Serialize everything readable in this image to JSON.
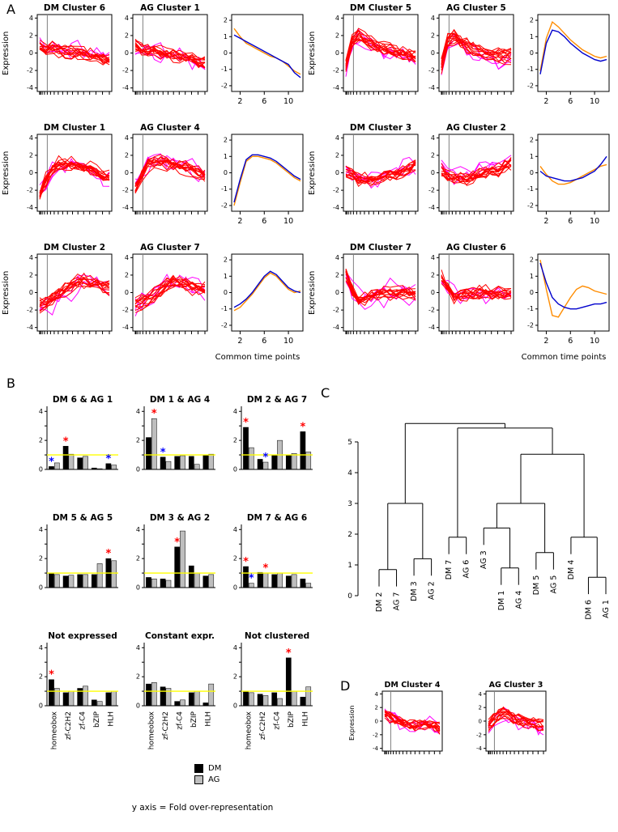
{
  "figure": {
    "panel_labels": {
      "a": "A",
      "b": "B",
      "c": "C",
      "d": "D"
    }
  },
  "axes": {
    "expression_label": "Expression",
    "common_time_points_label": "Common time points",
    "cluster_yticks": [
      -4,
      -2,
      0,
      2,
      4
    ],
    "comparison_yticks": [
      -2,
      -1,
      0,
      1,
      2
    ],
    "comparison_xticks": [
      2,
      6,
      10
    ],
    "bar_yticks": [
      0,
      1,
      2,
      3,
      4
    ],
    "bar_ytick_labels": [
      0,
      2,
      4
    ],
    "dendro_yticks": [
      0,
      1,
      2,
      3,
      4,
      5
    ]
  },
  "colors": {
    "cluster_line": "#ff0000",
    "cluster_outlier": "#ff00ff",
    "comparison_line_a": "#ff8c00",
    "comparison_line_b": "#0000cd",
    "bar_dm": "#000000",
    "bar_ag": "#bebebe",
    "reference_line": "#ffff00",
    "star_up": "#ff0000",
    "star_down": "#0000ff",
    "time_marker": "#808080"
  },
  "chart_data": {
    "panel_a_groups": [
      {
        "dm_title": "DM Cluster 6",
        "dm_profile": [
          0.7,
          0.4,
          0.5,
          0.3,
          0.2,
          0.1,
          0.0,
          -0.1,
          -0.2,
          -0.4,
          -0.6,
          -0.9
        ],
        "ag_title": "AG Cluster 1",
        "ag_profile": [
          1.0,
          0.6,
          0.4,
          0.3,
          0.2,
          0.0,
          -0.1,
          -0.2,
          -0.4,
          -0.6,
          -0.9,
          -1.2
        ],
        "comparison": {
          "type": "line",
          "x": [
            1,
            2,
            3,
            4,
            5,
            6,
            7,
            8,
            9,
            10,
            11,
            12
          ],
          "line_a": [
            1.5,
            1.0,
            0.6,
            0.4,
            0.2,
            0.0,
            -0.2,
            -0.3,
            -0.5,
            -0.8,
            -1.1,
            -1.3
          ],
          "line_b": [
            1.1,
            0.9,
            0.7,
            0.5,
            0.3,
            0.1,
            -0.1,
            -0.3,
            -0.5,
            -0.7,
            -1.2,
            -1.5
          ]
        }
      },
      {
        "dm_title": "DM Cluster 5",
        "dm_profile": [
          -1.6,
          1.2,
          1.9,
          1.4,
          1.0,
          0.7,
          0.4,
          0.2,
          0.0,
          -0.2,
          -0.4,
          -0.5
        ],
        "ag_title": "AG Cluster 5",
        "ag_profile": [
          -1.4,
          1.5,
          1.8,
          1.3,
          0.9,
          0.5,
          0.2,
          0.0,
          -0.2,
          -0.3,
          -0.4,
          -0.3
        ],
        "comparison": {
          "type": "line",
          "x": [
            1,
            2,
            3,
            4,
            5,
            6,
            7,
            8,
            9,
            10,
            11,
            12
          ],
          "line_a": [
            -1.1,
            0.9,
            1.9,
            1.6,
            1.2,
            0.8,
            0.5,
            0.2,
            0.0,
            -0.2,
            -0.3,
            -0.2
          ],
          "line_b": [
            -1.3,
            0.6,
            1.4,
            1.3,
            1.0,
            0.6,
            0.3,
            0.0,
            -0.2,
            -0.4,
            -0.5,
            -0.4
          ]
        }
      },
      {
        "dm_title": "DM Cluster 1",
        "dm_profile": [
          -2.2,
          -0.8,
          0.6,
          1.1,
          1.2,
          1.1,
          1.0,
          0.8,
          0.5,
          0.2,
          -0.1,
          -0.3
        ],
        "ag_title": "AG Cluster 4",
        "ag_profile": [
          -2.0,
          -0.5,
          0.8,
          1.2,
          1.2,
          1.0,
          0.9,
          0.7,
          0.4,
          0.1,
          -0.2,
          -0.5
        ],
        "comparison": {
          "type": "line",
          "x": [
            1,
            2,
            3,
            4,
            5,
            6,
            7,
            8,
            9,
            10,
            11,
            12
          ],
          "line_a": [
            -2.0,
            -0.6,
            0.7,
            1.0,
            1.0,
            0.9,
            0.8,
            0.6,
            0.3,
            0.0,
            -0.3,
            -0.5
          ],
          "line_b": [
            -1.8,
            -0.4,
            0.8,
            1.1,
            1.1,
            1.0,
            0.9,
            0.7,
            0.4,
            0.1,
            -0.2,
            -0.4
          ]
        }
      },
      {
        "dm_title": "DM Cluster 3",
        "dm_profile": [
          0.4,
          -0.2,
          -0.6,
          -0.7,
          -0.6,
          -0.5,
          -0.3,
          -0.1,
          0.1,
          0.4,
          0.7,
          1.1
        ],
        "ag_title": "AG Cluster 2",
        "ag_profile": [
          0.2,
          -0.3,
          -0.5,
          -0.6,
          -0.6,
          -0.4,
          -0.2,
          0.0,
          0.2,
          0.4,
          0.8,
          1.2
        ],
        "comparison": {
          "type": "line",
          "x": [
            1,
            2,
            3,
            4,
            5,
            6,
            7,
            8,
            9,
            10,
            11,
            12
          ],
          "line_a": [
            0.4,
            -0.1,
            -0.5,
            -0.7,
            -0.7,
            -0.6,
            -0.4,
            -0.2,
            0.0,
            0.2,
            0.4,
            0.5
          ],
          "line_b": [
            0.1,
            -0.2,
            -0.3,
            -0.4,
            -0.5,
            -0.5,
            -0.4,
            -0.3,
            -0.1,
            0.1,
            0.5,
            1.0
          ]
        }
      },
      {
        "dm_title": "DM Cluster 2",
        "dm_profile": [
          -1.6,
          -1.3,
          -0.9,
          -0.4,
          0.2,
          0.7,
          1.1,
          1.2,
          1.0,
          0.8,
          0.6,
          0.4
        ],
        "ag_title": "AG Cluster 7",
        "ag_profile": [
          -1.5,
          -1.2,
          -0.8,
          -0.3,
          0.3,
          0.8,
          1.2,
          1.1,
          0.9,
          0.6,
          0.4,
          0.3
        ],
        "comparison": {
          "type": "line",
          "x": [
            1,
            2,
            3,
            4,
            5,
            6,
            7,
            8,
            9,
            10,
            11,
            12
          ],
          "line_a": [
            -1.1,
            -0.9,
            -0.5,
            -0.1,
            0.4,
            0.9,
            1.2,
            1.0,
            0.6,
            0.2,
            0.0,
            0.1
          ],
          "line_b": [
            -0.9,
            -0.7,
            -0.4,
            0.0,
            0.5,
            1.0,
            1.3,
            1.1,
            0.7,
            0.3,
            0.1,
            0.0
          ]
        }
      },
      {
        "dm_title": "DM Cluster 7",
        "dm_profile": [
          2.1,
          0.2,
          -0.9,
          -0.6,
          -0.3,
          -0.1,
          0.0,
          -0.1,
          -0.1,
          0.0,
          -0.1,
          -0.2
        ],
        "ag_title": "AG Cluster 6",
        "ag_profile": [
          1.7,
          0.5,
          -0.4,
          -0.3,
          -0.2,
          -0.1,
          0.0,
          0.0,
          -0.1,
          0.0,
          -0.1,
          -0.1
        ],
        "comparison": {
          "type": "line",
          "x": [
            1,
            2,
            3,
            4,
            5,
            6,
            7,
            8,
            9,
            10,
            11,
            12
          ],
          "line_a": [
            2.0,
            0.2,
            -1.4,
            -1.5,
            -0.9,
            -0.3,
            0.2,
            0.4,
            0.3,
            0.1,
            0.0,
            -0.1
          ],
          "line_b": [
            1.8,
            0.6,
            -0.3,
            -0.7,
            -0.9,
            -1.0,
            -1.0,
            -0.9,
            -0.8,
            -0.7,
            -0.7,
            -0.6
          ]
        }
      }
    ],
    "panel_b": {
      "type": "bar",
      "categories": [
        "homeobox",
        "zf-C2H2",
        "zf-C4",
        "bZIP",
        "HLH"
      ],
      "ylim": [
        0,
        4
      ],
      "charts": [
        {
          "title": "DM 6 & AG 1",
          "dm": [
            0.2,
            1.6,
            0.8,
            0.1,
            0.4
          ],
          "ag": [
            0.45,
            1.05,
            0.9,
            0.05,
            0.3
          ],
          "stars": [
            {
              "i": 0,
              "s": "dm",
              "c": "blue"
            },
            {
              "i": 1,
              "s": "dm",
              "c": "red"
            },
            {
              "i": 4,
              "s": "dm",
              "c": "blue"
            }
          ]
        },
        {
          "title": "DM 1 & AG 4",
          "dm": [
            2.2,
            0.85,
            0.9,
            0.9,
            1.0
          ],
          "ag": [
            3.5,
            0.55,
            0.95,
            0.35,
            1.05
          ],
          "stars": [
            {
              "i": 0,
              "s": "ag",
              "c": "red"
            },
            {
              "i": 1,
              "s": "dm",
              "c": "blue"
            }
          ]
        },
        {
          "title": "DM 2 & AG 7",
          "dm": [
            2.9,
            0.7,
            1.0,
            1.0,
            2.6
          ],
          "ag": [
            1.5,
            0.5,
            2.0,
            1.1,
            1.2
          ],
          "stars": [
            {
              "i": 0,
              "s": "dm",
              "c": "red"
            },
            {
              "i": 1,
              "s": "ag",
              "c": "blue"
            },
            {
              "i": 4,
              "s": "dm",
              "c": "red"
            }
          ]
        },
        {
          "title": "DM 5 & AG 5",
          "dm": [
            1.0,
            0.8,
            0.9,
            0.9,
            2.0
          ],
          "ag": [
            0.9,
            0.85,
            0.9,
            1.65,
            1.85
          ],
          "stars": [
            {
              "i": 4,
              "s": "dm",
              "c": "red"
            }
          ]
        },
        {
          "title": "DM 3 & AG 2",
          "dm": [
            0.7,
            0.6,
            2.8,
            1.5,
            0.8
          ],
          "ag": [
            0.6,
            0.5,
            3.9,
            1.0,
            0.9
          ],
          "stars": [
            {
              "i": 2,
              "s": "dm",
              "c": "red"
            }
          ]
        },
        {
          "title": "DM 7 & AG 6",
          "dm": [
            1.45,
            1.05,
            0.9,
            0.8,
            0.6
          ],
          "ag": [
            0.3,
            1.0,
            1.0,
            0.9,
            0.3
          ],
          "stars": [
            {
              "i": 0,
              "s": "dm",
              "c": "red"
            },
            {
              "i": 0,
              "s": "ag",
              "c": "blue"
            },
            {
              "i": 1,
              "s": "ag",
              "c": "red"
            }
          ]
        },
        {
          "title": "Not expressed",
          "dm": [
            1.8,
            0.9,
            1.2,
            0.4,
            0.9
          ],
          "ag": [
            1.2,
            1.0,
            1.35,
            0.3,
            1.0
          ],
          "stars": [
            {
              "i": 0,
              "s": "dm",
              "c": "red"
            }
          ]
        },
        {
          "title": "Constant expr.",
          "dm": [
            1.5,
            1.3,
            0.3,
            0.9,
            0.2
          ],
          "ag": [
            1.6,
            1.2,
            0.4,
            1.0,
            1.5
          ],
          "stars": []
        },
        {
          "title": "Not clustered",
          "dm": [
            1.0,
            0.8,
            0.9,
            3.3,
            0.6
          ],
          "ag": [
            0.9,
            0.7,
            0.5,
            1.0,
            1.3
          ],
          "stars": [
            {
              "i": 3,
              "s": "dm",
              "c": "red"
            }
          ]
        }
      ],
      "legend": {
        "dm_label": "DM",
        "ag_label": "AG"
      },
      "caption": "y axis = Fold over-representation"
    },
    "panel_c": {
      "type": "dendrogram",
      "yticks": [
        0,
        1,
        2,
        3,
        4,
        5
      ],
      "tree": {
        "h": 5.6,
        "children": [
          {
            "h": 3.0,
            "children": [
              {
                "h": 0.85,
                "children": [
                  {
                    "leaf": "DM 2"
                  },
                  {
                    "leaf": "AG 7"
                  }
                ]
              },
              {
                "h": 1.2,
                "children": [
                  {
                    "leaf": "DM 3"
                  },
                  {
                    "leaf": "AG 2"
                  }
                ]
              }
            ]
          },
          {
            "h": 5.45,
            "children": [
              {
                "h": 1.9,
                "children": [
                  {
                    "leaf": "DM 7"
                  },
                  {
                    "leaf": "AG 6"
                  }
                ]
              },
              {
                "h": 4.6,
                "children": [
                  {
                    "h": 3.0,
                    "children": [
                      {
                        "h": 2.2,
                        "children": [
                          {
                            "leaf": "AG 3"
                          },
                          {
                            "h": 0.9,
                            "children": [
                              {
                                "leaf": "DM 1"
                              },
                              {
                                "leaf": "AG 4"
                              }
                            ]
                          }
                        ]
                      },
                      {
                        "h": 1.4,
                        "children": [
                          {
                            "leaf": "DM 5"
                          },
                          {
                            "leaf": "AG 5"
                          }
                        ]
                      }
                    ]
                  },
                  {
                    "h": 1.9,
                    "children": [
                      {
                        "leaf": "DM 4"
                      },
                      {
                        "h": 0.6,
                        "children": [
                          {
                            "leaf": "DM 6"
                          },
                          {
                            "leaf": "AG 1"
                          }
                        ]
                      }
                    ]
                  }
                ]
              }
            ]
          }
        ]
      }
    },
    "panel_d": {
      "dm_title": "DM Cluster 4",
      "dm_profile": [
        1.1,
        0.7,
        0.3,
        0.0,
        -0.3,
        -0.5,
        -0.7,
        -0.5,
        -0.4,
        -0.6,
        -0.8,
        -1.0
      ],
      "ag_title": "AG Cluster 3",
      "ag_profile": [
        -0.6,
        0.2,
        0.9,
        1.3,
        1.0,
        0.6,
        0.2,
        0.0,
        -0.2,
        -0.4,
        -0.5,
        -0.7
      ]
    }
  }
}
